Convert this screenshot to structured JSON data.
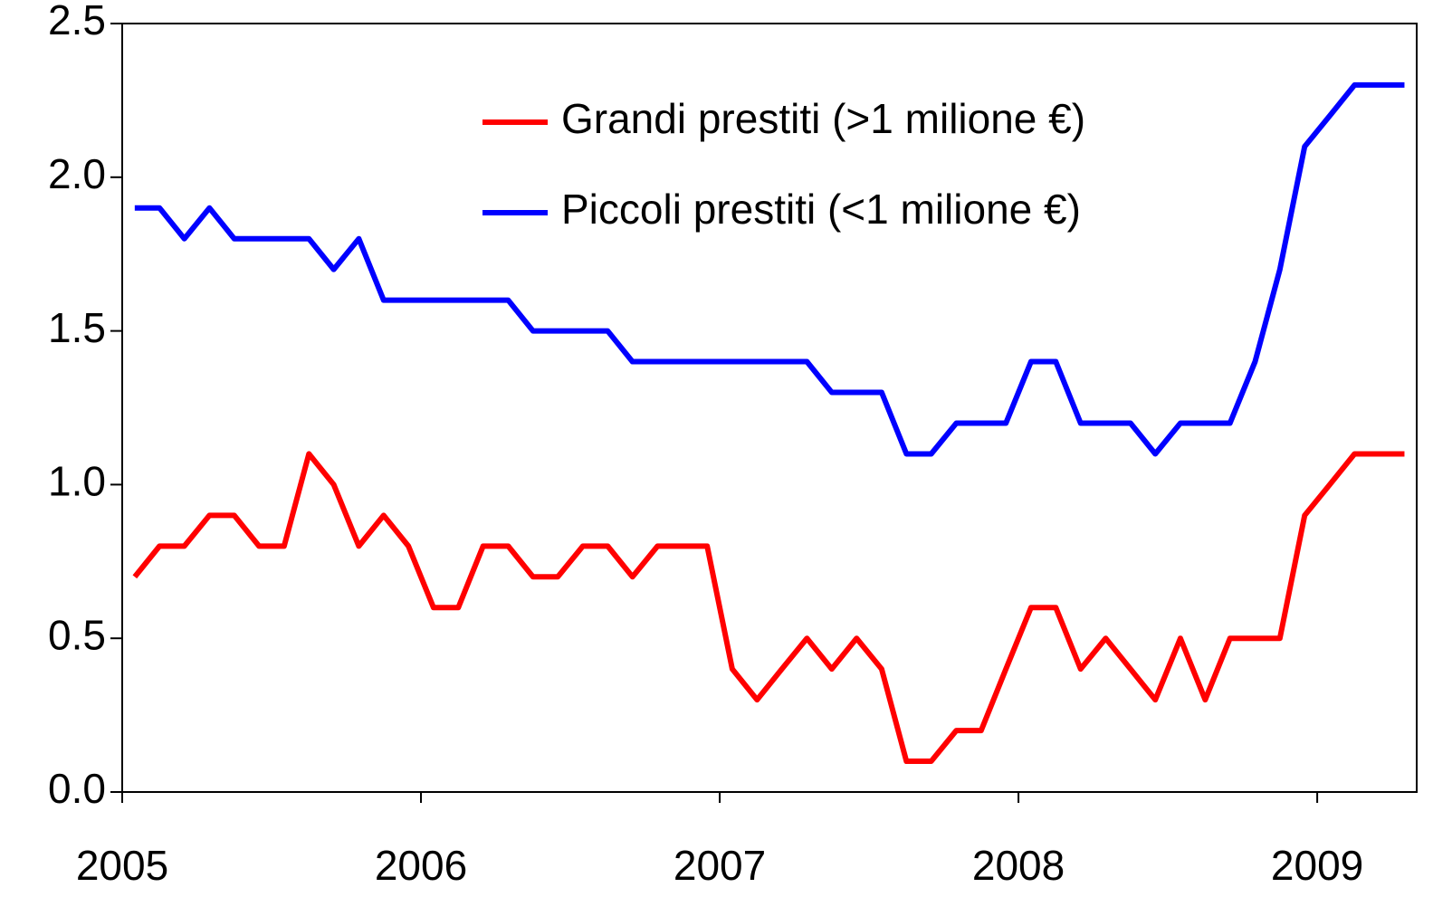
{
  "chart_data": {
    "type": "line",
    "x": [
      2005.042,
      2005.125,
      2005.208,
      2005.292,
      2005.375,
      2005.458,
      2005.542,
      2005.625,
      2005.708,
      2005.792,
      2005.875,
      2005.958,
      2006.042,
      2006.125,
      2006.208,
      2006.292,
      2006.375,
      2006.458,
      2006.542,
      2006.625,
      2006.708,
      2006.792,
      2006.875,
      2006.958,
      2007.042,
      2007.125,
      2007.208,
      2007.292,
      2007.375,
      2007.458,
      2007.542,
      2007.625,
      2007.708,
      2007.792,
      2007.875,
      2007.958,
      2008.042,
      2008.125,
      2008.208,
      2008.292,
      2008.375,
      2008.458,
      2008.542,
      2008.625,
      2008.708,
      2008.792,
      2008.875,
      2008.958,
      2009.042,
      2009.125,
      2009.208,
      2009.292
    ],
    "series": [
      {
        "name": "Grandi prestiti (>1 milione €)",
        "color": "#ff0000",
        "values": [
          0.7,
          0.8,
          0.8,
          0.9,
          0.9,
          0.8,
          0.8,
          1.1,
          1.0,
          0.8,
          0.9,
          0.8,
          0.6,
          0.6,
          0.8,
          0.8,
          0.7,
          0.7,
          0.8,
          0.8,
          0.7,
          0.8,
          0.8,
          0.8,
          0.4,
          0.3,
          0.4,
          0.5,
          0.4,
          0.5,
          0.4,
          0.1,
          0.1,
          0.2,
          0.2,
          0.4,
          0.6,
          0.6,
          0.4,
          0.5,
          0.4,
          0.3,
          0.5,
          0.3,
          0.5,
          0.5,
          0.5,
          0.9,
          1.0,
          1.1,
          1.1,
          1.1
        ]
      },
      {
        "name": "Piccoli prestiti (<1 milione €)",
        "color": "#0000ff",
        "values": [
          1.9,
          1.9,
          1.8,
          1.9,
          1.8,
          1.8,
          1.8,
          1.8,
          1.7,
          1.8,
          1.6,
          1.6,
          1.6,
          1.6,
          1.6,
          1.6,
          1.5,
          1.5,
          1.5,
          1.5,
          1.4,
          1.4,
          1.4,
          1.4,
          1.4,
          1.4,
          1.4,
          1.4,
          1.3,
          1.3,
          1.3,
          1.1,
          1.1,
          1.2,
          1.2,
          1.2,
          1.4,
          1.4,
          1.2,
          1.2,
          1.2,
          1.1,
          1.2,
          1.2,
          1.2,
          1.4,
          1.7,
          2.1,
          2.2,
          2.3,
          2.3,
          2.3
        ]
      }
    ],
    "xlim": [
      2005,
      2009.333
    ],
    "xticks": [
      2005,
      2006,
      2007,
      2008,
      2009
    ],
    "ylim": [
      0,
      2.5
    ],
    "yticks": [
      {
        "value": 0,
        "label": "0.0"
      },
      {
        "value": 0.5,
        "label": "0.5"
      },
      {
        "value": 1,
        "label": "1.0"
      },
      {
        "value": 1.5,
        "label": "1.5"
      },
      {
        "value": 2,
        "label": "2.0"
      },
      {
        "value": 2.5,
        "label": "2.5"
      }
    ],
    "legend": "top-right"
  }
}
